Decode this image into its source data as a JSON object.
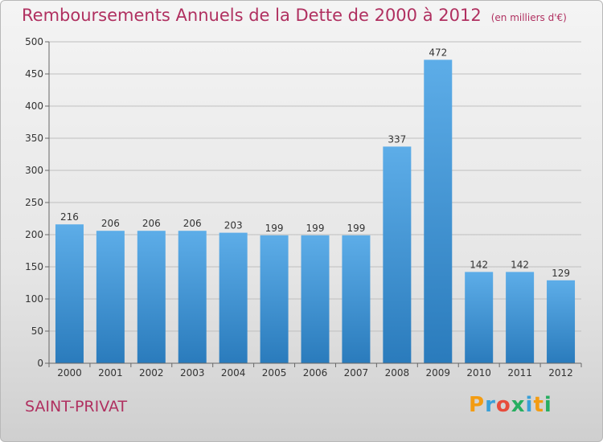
{
  "header": {
    "title": "Remboursements Annuels de la Dette de 2000 à 2012",
    "unit": "(en milliers d'€)"
  },
  "footer": {
    "town": "SAINT-PRIVAT",
    "logo_letters": [
      "P",
      "r",
      "o",
      "x",
      "i",
      "t",
      "i"
    ],
    "logo_colors": [
      "#f39c12",
      "#3aa0d8",
      "#e74c3c",
      "#27ae60",
      "#3aa0d8",
      "#f39c12",
      "#27ae60"
    ]
  },
  "colors": {
    "title": "#b03060",
    "bar_top": "#5dade8",
    "bar_bottom": "#2a7bbc",
    "grid": "#bfbfbf",
    "axis": "#666666",
    "label": "#333333"
  },
  "chart_data": {
    "type": "bar",
    "categories": [
      "2000",
      "2001",
      "2002",
      "2003",
      "2004",
      "2005",
      "2006",
      "2007",
      "2008",
      "2009",
      "2010",
      "2011",
      "2012"
    ],
    "values": [
      216,
      206,
      206,
      206,
      203,
      199,
      199,
      199,
      337,
      472,
      142,
      142,
      129
    ],
    "ylim": [
      0,
      500
    ],
    "yticks": [
      0,
      50,
      100,
      150,
      200,
      250,
      300,
      350,
      400,
      450,
      500
    ],
    "grid": true,
    "data_labels": true
  }
}
